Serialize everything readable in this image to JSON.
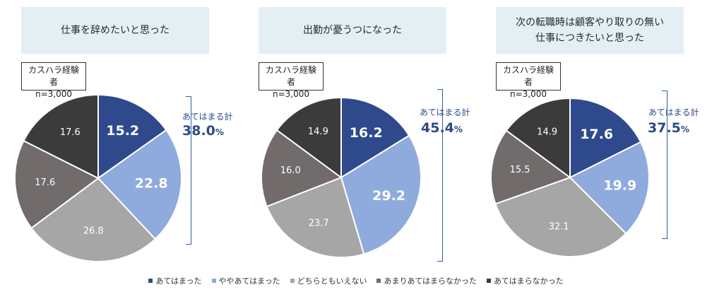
{
  "legend": [
    {
      "label": "あてはまった",
      "color": "#2e4a8c"
    },
    {
      "label": "ややあてはまった",
      "color": "#8faadc"
    },
    {
      "label": "どちらともいえない",
      "color": "#a6a6a6"
    },
    {
      "label": "あまりあてはまらなかった",
      "color": "#716b6b"
    },
    {
      "label": "あてはまらなかった",
      "color": "#3b3b3b"
    }
  ],
  "sample": {
    "line1": "カスハラ経験者",
    "line2": "n=3,000"
  },
  "total_label": "あてはまる計",
  "total_unit": "%",
  "chart_data": [
    {
      "type": "pie",
      "title": "仕事を辞めたいと思った",
      "categories": [
        "あてはまった",
        "ややあてはまった",
        "どちらともいえない",
        "あまりあてはまらなかった",
        "あてはまらなかった"
      ],
      "values": [
        15.2,
        22.8,
        26.8,
        17.6,
        17.6
      ],
      "labels": [
        "15.2",
        "22.8",
        "26.8",
        "17.6",
        "17.6"
      ],
      "total": "38.0"
    },
    {
      "type": "pie",
      "title": "出勤が憂うつになった",
      "categories": [
        "あてはまった",
        "ややあてはまった",
        "どちらともいえない",
        "あまりあてはまらなかった",
        "あてはまらなかった"
      ],
      "values": [
        16.2,
        29.2,
        23.7,
        16.0,
        14.9
      ],
      "labels": [
        "16.2",
        "29.2",
        "23.7",
        "16.0",
        "14.9"
      ],
      "total": "45.4"
    },
    {
      "type": "pie",
      "title": "次の転職時は顧客やり取りの無い\n仕事につきたいと思った",
      "categories": [
        "あてはまった",
        "ややあてはまった",
        "どちらともいえない",
        "あまりあてはまらなかった",
        "あてはまらなかった"
      ],
      "values": [
        17.6,
        19.9,
        32.1,
        15.5,
        14.9
      ],
      "labels": [
        "17.6",
        "19.9",
        "32.1",
        "15.5",
        "14.9"
      ],
      "total": "37.5"
    }
  ]
}
